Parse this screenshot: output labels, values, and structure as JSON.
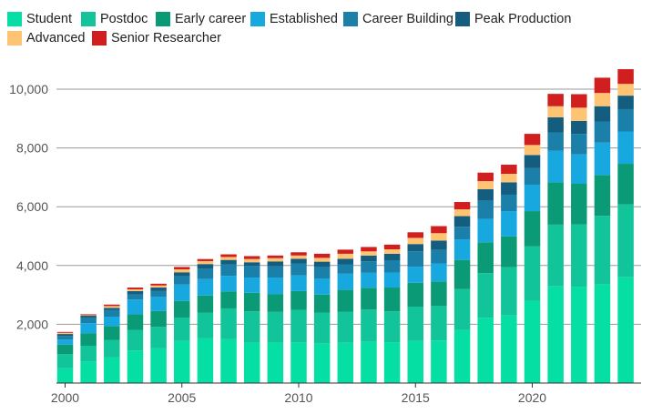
{
  "chart_data": {
    "type": "bar",
    "stacked": true,
    "title": "",
    "xlabel": "",
    "ylabel": "",
    "categories": [
      2000,
      2001,
      2002,
      2003,
      2004,
      2005,
      2006,
      2007,
      2008,
      2009,
      2010,
      2011,
      2012,
      2013,
      2014,
      2015,
      2016,
      2017,
      2018,
      2019,
      2020,
      2021,
      2022,
      2023,
      2024
    ],
    "x_ticks": [
      "2000",
      "2005",
      "2010",
      "2015",
      "2020"
    ],
    "y_ticks": [
      "2,000",
      "4,000",
      "6,000",
      "8,000",
      "10,000"
    ],
    "y_tick_values": [
      2000,
      4000,
      6000,
      8000,
      10000
    ],
    "ylim": [
      0,
      10900
    ],
    "grid": "horizontal",
    "legend_position": "top",
    "series": [
      {
        "name": "Student",
        "color": "#06dfa3",
        "values": [
          500,
          740,
          870,
          1110,
          1180,
          1430,
          1520,
          1500,
          1380,
          1380,
          1390,
          1350,
          1370,
          1400,
          1390,
          1430,
          1450,
          1800,
          2220,
          2300,
          2800,
          3290,
          3280,
          3350,
          3600
        ]
      },
      {
        "name": "Postdoc",
        "color": "#12c49a",
        "values": [
          480,
          530,
          600,
          700,
          730,
          800,
          880,
          1040,
          1060,
          1040,
          1100,
          1050,
          1060,
          1100,
          1050,
          1170,
          1170,
          1400,
          1520,
          1640,
          1850,
          2100,
          2120,
          2340,
          2480
        ]
      },
      {
        "name": "Early career",
        "color": "#0a9a75",
        "values": [
          330,
          420,
          470,
          530,
          540,
          560,
          580,
          580,
          630,
          610,
          640,
          610,
          740,
          740,
          810,
          810,
          840,
          990,
          1050,
          1050,
          1200,
          1440,
          1380,
          1390,
          1380
        ]
      },
      {
        "name": "Established",
        "color": "#17a8df",
        "values": [
          170,
          350,
          320,
          500,
          480,
          560,
          560,
          530,
          520,
          560,
          530,
          550,
          550,
          510,
          510,
          550,
          610,
          700,
          800,
          860,
          900,
          1070,
          1000,
          1100,
          1100
        ]
      },
      {
        "name": "Career Building",
        "color": "#1b80a9",
        "values": [
          120,
          190,
          220,
          180,
          200,
          280,
          360,
          380,
          400,
          380,
          410,
          390,
          320,
          390,
          420,
          520,
          460,
          430,
          620,
          560,
          560,
          630,
          700,
          720,
          760
        ]
      },
      {
        "name": "Peak Production",
        "color": "#145d7e",
        "values": [
          70,
          60,
          80,
          110,
          120,
          140,
          150,
          160,
          120,
          170,
          160,
          180,
          190,
          200,
          220,
          250,
          320,
          360,
          390,
          420,
          450,
          510,
          440,
          520,
          460
        ]
      },
      {
        "name": "Advanced",
        "color": "#ffc473",
        "values": [
          40,
          20,
          60,
          60,
          70,
          100,
          100,
          100,
          110,
          110,
          110,
          130,
          170,
          140,
          150,
          210,
          250,
          230,
          270,
          290,
          340,
          380,
          450,
          450,
          400
        ]
      },
      {
        "name": "Senior Researcher",
        "color": "#d11f20",
        "values": [
          30,
          30,
          50,
          60,
          60,
          80,
          70,
          90,
          100,
          90,
          110,
          140,
          140,
          150,
          160,
          190,
          240,
          250,
          290,
          310,
          380,
          420,
          460,
          520,
          500
        ]
      }
    ]
  }
}
